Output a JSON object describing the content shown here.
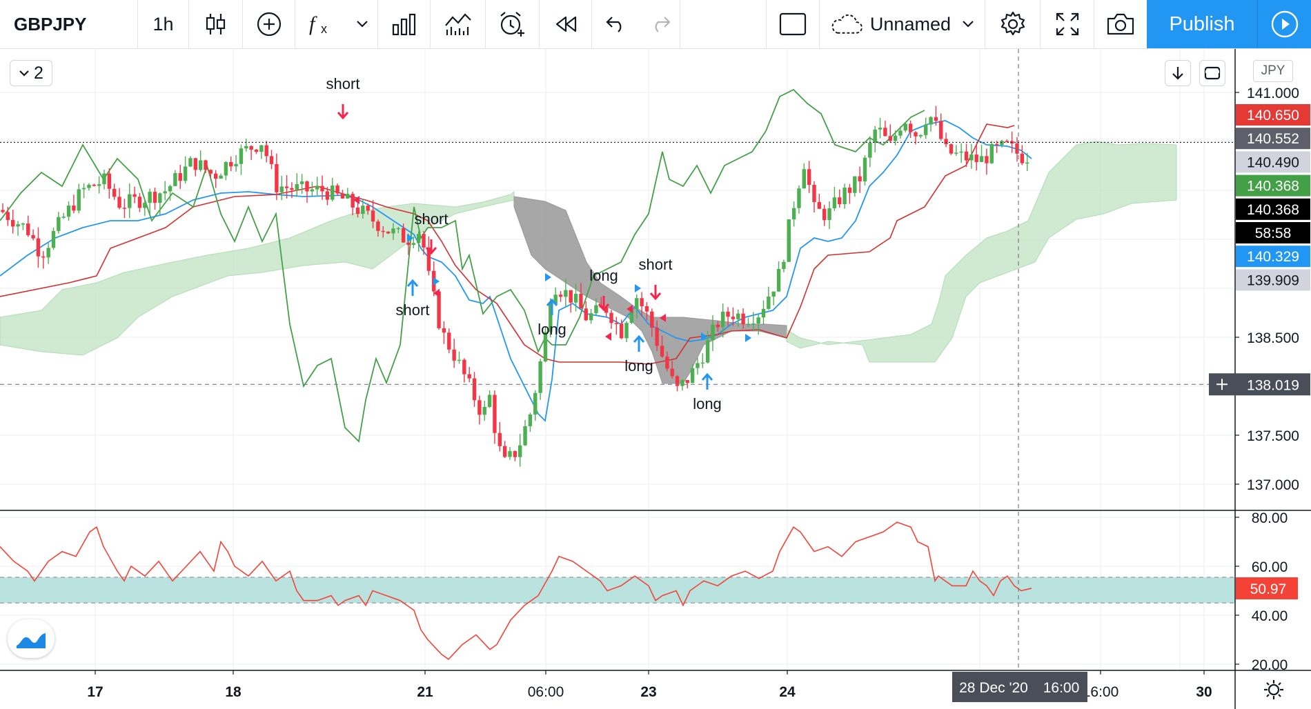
{
  "toolbar": {
    "symbol": "GBPJPY",
    "interval": "1h",
    "layout_name": "Unnamed",
    "publish_label": "Publish",
    "icons": [
      "candles-icon",
      "add-indicator-icon",
      "fx-icon",
      "chevron-down-icon",
      "bars-icon",
      "line-chart-icon",
      "alarm-add-icon",
      "replay-icon",
      "undo-icon",
      "redo-icon",
      "rectangle-icon",
      "cloud-icon",
      "chevron-down-icon",
      "settings-icon",
      "fullscreen-icon",
      "camera-icon",
      "play-icon"
    ]
  },
  "legend": {
    "count": "2"
  },
  "currency": "JPY",
  "colors": {
    "up": "#26a69a",
    "candle_up": "#4caf50",
    "candle_down": "#f23645",
    "tenkan": "#2196f3",
    "kijun": "#d32f2f",
    "chikou": "#43a047",
    "cloud_bull": "#c8e6c9",
    "cloud_bear": "#9e9e9e",
    "rsi": "#f44336",
    "rsi_band": "#b2dfdb",
    "accent": "#2196f3"
  },
  "price_axis": {
    "ticks": [
      "141.000",
      "138.500",
      "137.500",
      "137.000"
    ],
    "badges": [
      {
        "value": "140.650",
        "bg": "#e53935",
        "fg": "#ffffff"
      },
      {
        "value": "140.552",
        "bg": "#5d606b",
        "fg": "#ffffff"
      },
      {
        "value": "140.490",
        "bg": "#d1d4dc",
        "fg": "#131722"
      },
      {
        "value": "140.368",
        "bg": "#43a047",
        "fg": "#ffffff"
      },
      {
        "value": "140.368",
        "bg": "#000000",
        "fg": "#ffffff"
      },
      {
        "value": "58:58",
        "bg": "#000000",
        "fg": "#ffffff"
      },
      {
        "value": "140.329",
        "bg": "#2196f3",
        "fg": "#ffffff"
      },
      {
        "value": "139.909",
        "bg": "#d1d4dc",
        "fg": "#131722"
      }
    ],
    "crosshair_price": "138.019"
  },
  "rsi_axis": {
    "ticks": [
      "80.00",
      "60.00",
      "40.00",
      "20.00"
    ],
    "current": "50.97"
  },
  "time_axis": {
    "ticks": [
      "17",
      "18",
      "21",
      "06:00",
      "23",
      "24",
      "16:00",
      "30"
    ],
    "crosshair_label": "28 Dec '20",
    "crosshair_time": "16:00"
  },
  "signals": [
    "short",
    "short",
    "long",
    "short",
    "short",
    "long",
    "long",
    "long"
  ]
}
